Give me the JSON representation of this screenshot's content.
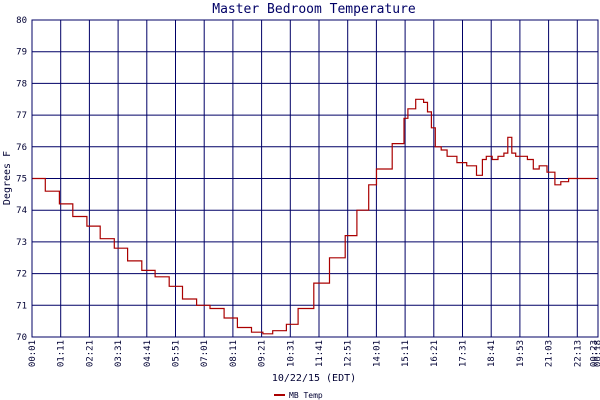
{
  "chart_data": {
    "type": "line",
    "title": "Master Bedroom Temperature",
    "xlabel": "10/22/15 (EDT)",
    "ylabel": "Degrees F",
    "ylim": [
      70,
      80
    ],
    "y_ticks": [
      70,
      71,
      72,
      73,
      74,
      75,
      76,
      77,
      78,
      79,
      80
    ],
    "x_tick_labels": [
      "00:01",
      "01:11",
      "02:21",
      "03:31",
      "04:41",
      "05:51",
      "07:01",
      "08:11",
      "09:21",
      "10:31",
      "11:41",
      "12:51",
      "14:01",
      "15:11",
      "16:21",
      "17:31",
      "18:41",
      "19:53",
      "21:03",
      "22:13",
      "00:23",
      "00:18"
    ],
    "grid": true,
    "legend_position": "bottom-center",
    "colors": {
      "line": "#aa0000",
      "grid": "#000066",
      "frame": "#000066",
      "text": "#000033"
    },
    "series": [
      {
        "name": "MB Temp",
        "x_minutes": [
          1,
          35,
          71,
          105,
          141,
          175,
          211,
          245,
          281,
          315,
          351,
          385,
          421,
          455,
          491,
          525,
          561,
          590,
          615,
          650,
          680,
          720,
          760,
          800,
          830,
          860,
          880,
          920,
          950,
          960,
          980,
          1000,
          1010,
          1020,
          1030,
          1045,
          1060,
          1085,
          1110,
          1135,
          1150,
          1160,
          1175,
          1190,
          1205,
          1215,
          1225,
          1235,
          1255,
          1265,
          1280,
          1295,
          1315,
          1335,
          1350,
          1370,
          1390,
          1410,
          1430,
          1440
        ],
        "values": [
          75.0,
          74.6,
          74.2,
          73.8,
          73.5,
          73.1,
          72.8,
          72.4,
          72.1,
          71.9,
          71.6,
          71.2,
          71.0,
          70.9,
          70.6,
          70.3,
          70.15,
          70.1,
          70.2,
          70.4,
          70.9,
          71.7,
          72.5,
          73.2,
          74.0,
          74.8,
          75.3,
          76.1,
          76.9,
          77.2,
          77.5,
          77.4,
          77.1,
          76.6,
          76.0,
          75.9,
          75.7,
          75.5,
          75.4,
          75.1,
          75.6,
          75.7,
          75.6,
          75.7,
          75.8,
          76.3,
          75.8,
          75.7,
          75.7,
          75.6,
          75.3,
          75.4,
          75.2,
          74.8,
          74.9,
          75.0,
          75.0,
          75.0,
          75.0,
          75.0
        ]
      }
    ]
  }
}
